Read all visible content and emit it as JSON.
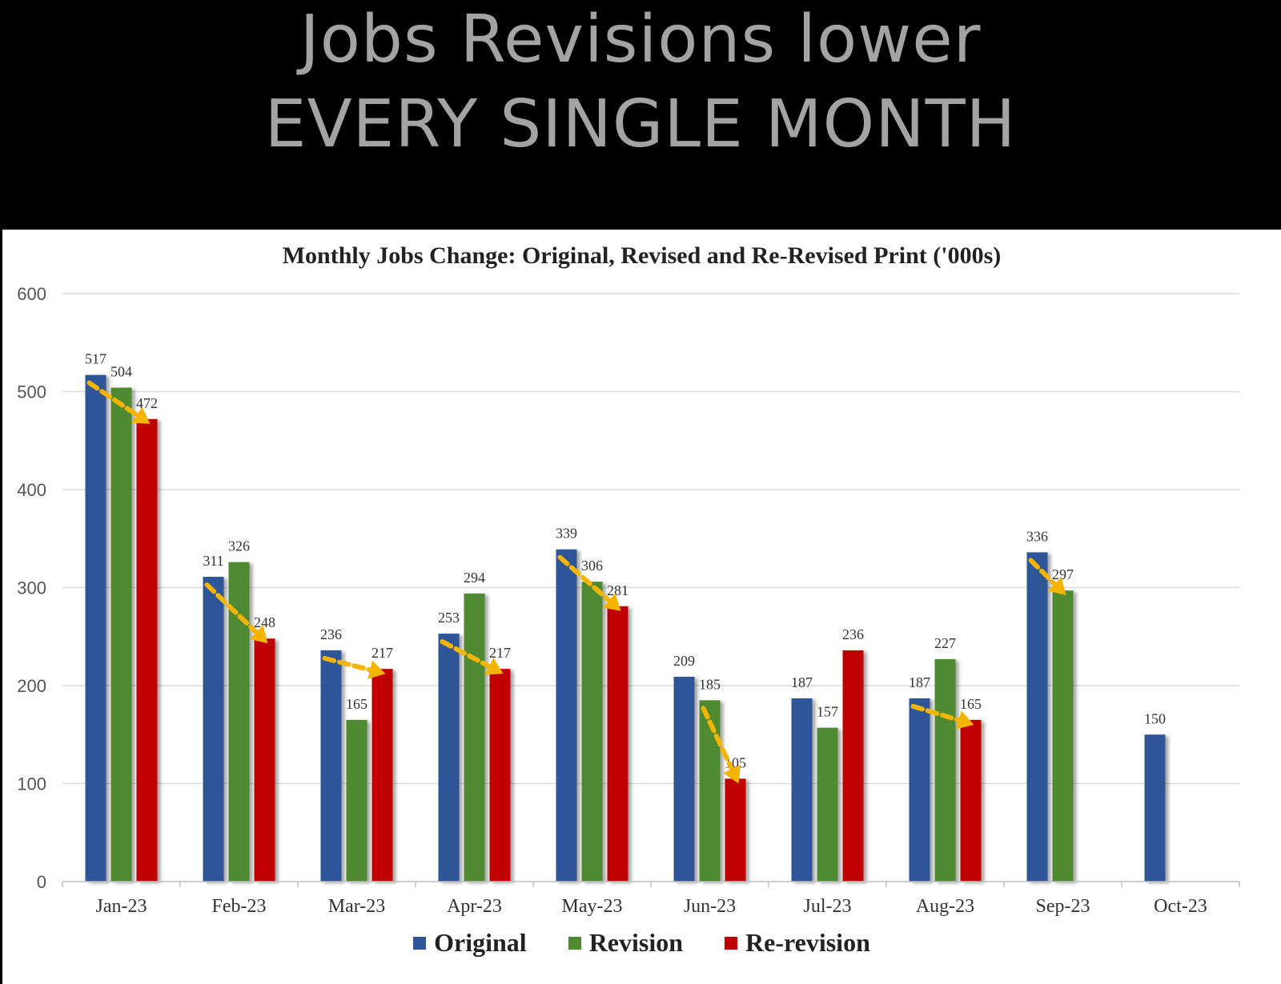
{
  "banner": {
    "line1": "Jobs Revisions lower",
    "line2": "EVERY SINGLE MONTH",
    "background": "#000000",
    "text_color": "#a3a3a3"
  },
  "chart_data": {
    "type": "bar",
    "title": "Monthly Jobs Change: Original, Revised and Re-Revised Print ('000s)",
    "xlabel": "",
    "ylabel": "",
    "ylim": [
      0,
      600
    ],
    "yticks": [
      0,
      100,
      200,
      300,
      400,
      500,
      600
    ],
    "grid": true,
    "legend_position": "bottom",
    "categories": [
      "Jan-23",
      "Feb-23",
      "Mar-23",
      "Apr-23",
      "May-23",
      "Jun-23",
      "Jul-23",
      "Aug-23",
      "Sep-23",
      "Oct-23"
    ],
    "series": [
      {
        "name": "Original",
        "color": "#2e5597",
        "values": [
          517,
          311,
          236,
          253,
          339,
          209,
          187,
          187,
          336,
          150
        ]
      },
      {
        "name": "Revision",
        "color": "#4f8a32",
        "values": [
          504,
          326,
          165,
          294,
          306,
          185,
          157,
          227,
          297,
          null
        ]
      },
      {
        "name": "Re-revision",
        "color": "#c00000",
        "values": [
          472,
          248,
          217,
          217,
          281,
          105,
          236,
          165,
          null,
          null
        ]
      }
    ],
    "annotations": {
      "type": "dashed-arrow",
      "color": "#f4b400",
      "arrows": [
        {
          "category": "Jan-23",
          "from_series": "Original",
          "to_series": "Re-revision"
        },
        {
          "category": "Feb-23",
          "from_series": "Original",
          "to_series": "Re-revision"
        },
        {
          "category": "Mar-23",
          "from_series": "Original",
          "to_series": "Re-revision"
        },
        {
          "category": "Apr-23",
          "from_series": "Original",
          "to_series": "Re-revision"
        },
        {
          "category": "May-23",
          "from_series": "Original",
          "to_series": "Re-revision"
        },
        {
          "category": "Jun-23",
          "from_series": "Revision",
          "to_series": "Re-revision"
        },
        {
          "category": "Aug-23",
          "from_series": "Original",
          "to_series": "Re-revision"
        },
        {
          "category": "Sep-23",
          "from_series": "Original",
          "to_series": "Revision"
        }
      ]
    }
  }
}
